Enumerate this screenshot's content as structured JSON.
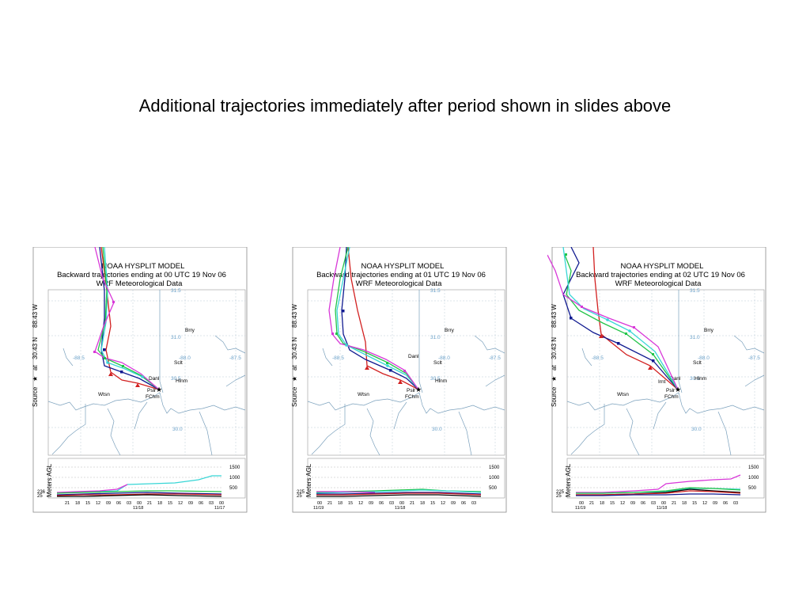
{
  "slide": {
    "title": "Additional trajectories immediately after period shown in slides above"
  },
  "colors": {
    "red": "#d22020",
    "navy": "#101a90",
    "green": "#22c448",
    "cyan": "#38d6d6",
    "magenta": "#d838d8",
    "black": "#000000",
    "coast": "#7aa0bc",
    "grid": "#9ab4c8"
  },
  "panels": [
    {
      "title_line1": "NOAA HYSPLIT MODEL",
      "title_line2": "Backward trajectories ending at 00 UTC 19 Nov 06",
      "title_line3": "WRF  Meteorological Data",
      "source_label": "Source",
      "source_coords_lat": "30.43 N",
      "source_coords_lon": "88.43 W",
      "source_at": "at",
      "ylabel": "Meters AGL",
      "grid_labels": [
        "31.5",
        "31.0",
        "30.5",
        "30.0",
        "-88.5",
        "-88.0",
        "-87.5"
      ],
      "places": [
        "Brry",
        "Sclt",
        "Danl",
        "Hlnm",
        "Pslr",
        "FChm",
        "Wtsn"
      ],
      "height_ticks": [
        "1500",
        "1000",
        "500"
      ],
      "start_heights": [
        "236",
        "25"
      ],
      "time_ticks": [
        "21",
        "18",
        "15",
        "12",
        "09",
        "06",
        "03",
        "00",
        "21",
        "18",
        "15",
        "12",
        "09",
        "06",
        "03",
        "00"
      ],
      "date_labels": [
        "11/18",
        "11/17"
      ]
    },
    {
      "title_line1": "NOAA HYSPLIT MODEL",
      "title_line2": "Backward trajectories ending at 01 UTC 19 Nov 06",
      "title_line3": "WRF  Meteorological Data",
      "source_label": "Source",
      "source_coords_lat": "30.43 N",
      "source_coords_lon": "88.43 W",
      "source_at": "at",
      "ylabel": "Meters AGL",
      "grid_labels": [
        "31.5",
        "31.0",
        "30.5",
        "30.0",
        "-88.5",
        "-88.0",
        "-87.5"
      ],
      "places": [
        "Brry",
        "Sclt",
        "Danl",
        "Hlnm",
        "Pslr",
        "FChm",
        "Wtsn"
      ],
      "height_ticks": [
        "1500",
        "1000",
        "500"
      ],
      "start_heights": [
        "225",
        "25"
      ],
      "time_ticks": [
        "00",
        "21",
        "18",
        "15",
        "12",
        "09",
        "06",
        "03",
        "00",
        "21",
        "18",
        "15",
        "12",
        "09",
        "06",
        "03"
      ],
      "date_labels": [
        "11/19",
        "11/18"
      ]
    },
    {
      "title_line1": "NOAA HYSPLIT MODEL",
      "title_line2": "Backward trajectories ending at 02 UTC 19 Nov 06",
      "title_line3": "WRF  Meteorological Data",
      "source_label": "Source",
      "source_coords_lat": "30.43 N",
      "source_coords_lon": "88.43 W",
      "source_at": "at",
      "ylabel": "Meters AGL",
      "grid_labels": [
        "31.5",
        "31.0",
        "30.5",
        "30.0",
        "-88.5",
        "-88.0",
        "-87.5"
      ],
      "places": [
        "Brry",
        "Sclt",
        "Danl",
        "Hlnm",
        "Pslr",
        "FChm",
        "Wtsn",
        "Irnt"
      ],
      "height_ticks": [
        "1500",
        "1000",
        "500"
      ],
      "start_heights": [
        "225",
        "25"
      ],
      "time_ticks": [
        "00",
        "21",
        "18",
        "15",
        "12",
        "09",
        "06",
        "03",
        "00",
        "21",
        "18",
        "15",
        "12",
        "09",
        "06",
        "03"
      ],
      "date_labels": [
        "11/19",
        "11/18"
      ]
    }
  ]
}
